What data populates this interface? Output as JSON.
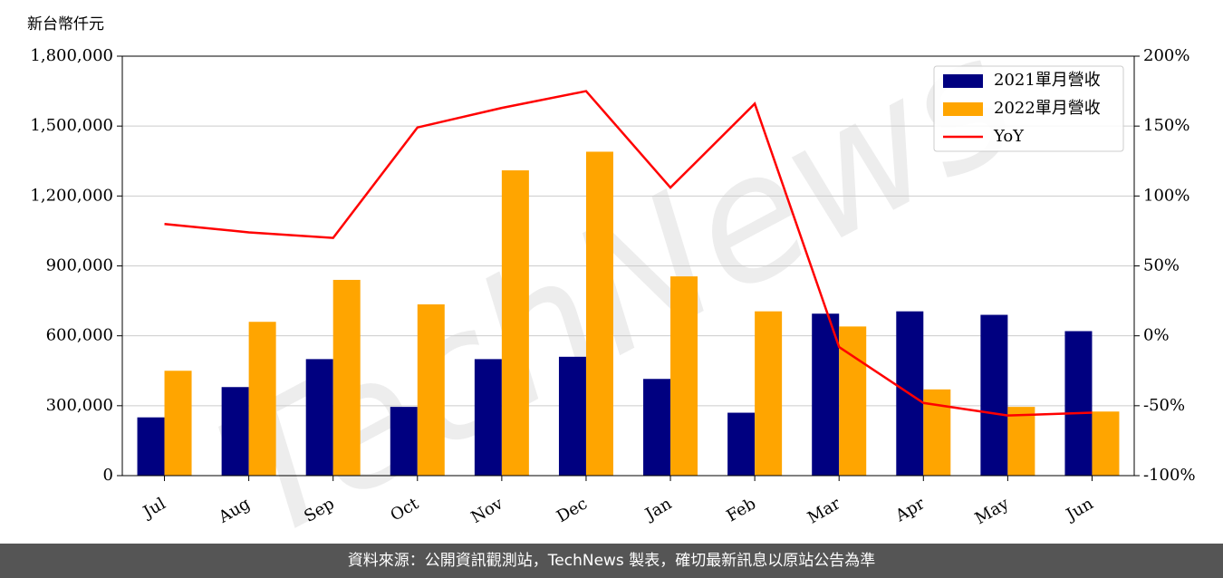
{
  "chart_data": {
    "type": "bar-line",
    "y_label": "新台幣仟元",
    "watermark": "TechNews",
    "source": "資料來源：公開資訊觀測站，TechNews 製表，確切最新訊息以原站公告為準",
    "categories": [
      "Jul",
      "Aug",
      "Sep",
      "Oct",
      "Nov",
      "Dec",
      "Jan",
      "Feb",
      "Mar",
      "Apr",
      "May",
      "Jun"
    ],
    "series": [
      {
        "name": "2021單月營收",
        "type": "bar",
        "color": "#000080",
        "values": [
          250000,
          380000,
          500000,
          295000,
          500000,
          510000,
          415000,
          270000,
          695000,
          705000,
          690000,
          620000
        ]
      },
      {
        "name": "2022單月營收",
        "type": "bar",
        "color": "#ffa500",
        "values": [
          450000,
          660000,
          840000,
          735000,
          1310000,
          1390000,
          855000,
          705000,
          640000,
          370000,
          295000,
          275000
        ]
      },
      {
        "name": "YoY",
        "type": "line",
        "axis": "y2",
        "color": "#ff0000",
        "values": [
          80,
          74,
          70,
          149,
          163,
          175,
          106,
          166,
          -8,
          -48,
          -57,
          -55
        ]
      }
    ],
    "ylim": [
      0,
      1800000
    ],
    "yticks": [
      0,
      {
        "value": 300000,
        "label": "300,000"
      },
      {
        "value": 600000,
        "label": "600,000"
      },
      {
        "value": 900000,
        "label": "900,000"
      },
      {
        "value": 1200000,
        "label": "1,200,000"
      },
      {
        "value": 1500000,
        "label": "1,500,000"
      },
      {
        "value": 1800000,
        "label": "1,800,000"
      }
    ],
    "y2lim": [
      -100,
      200
    ],
    "y2ticks": [
      {
        "value": -100,
        "label": "-100%"
      },
      {
        "value": -50,
        "label": "-50%"
      },
      {
        "value": 0,
        "label": "0%"
      },
      {
        "value": 50,
        "label": "50%"
      },
      {
        "value": 100,
        "label": "100%"
      },
      {
        "value": 150,
        "label": "150%"
      },
      {
        "value": 200,
        "label": "200%"
      }
    ],
    "grid": true,
    "legend": "upper right"
  }
}
